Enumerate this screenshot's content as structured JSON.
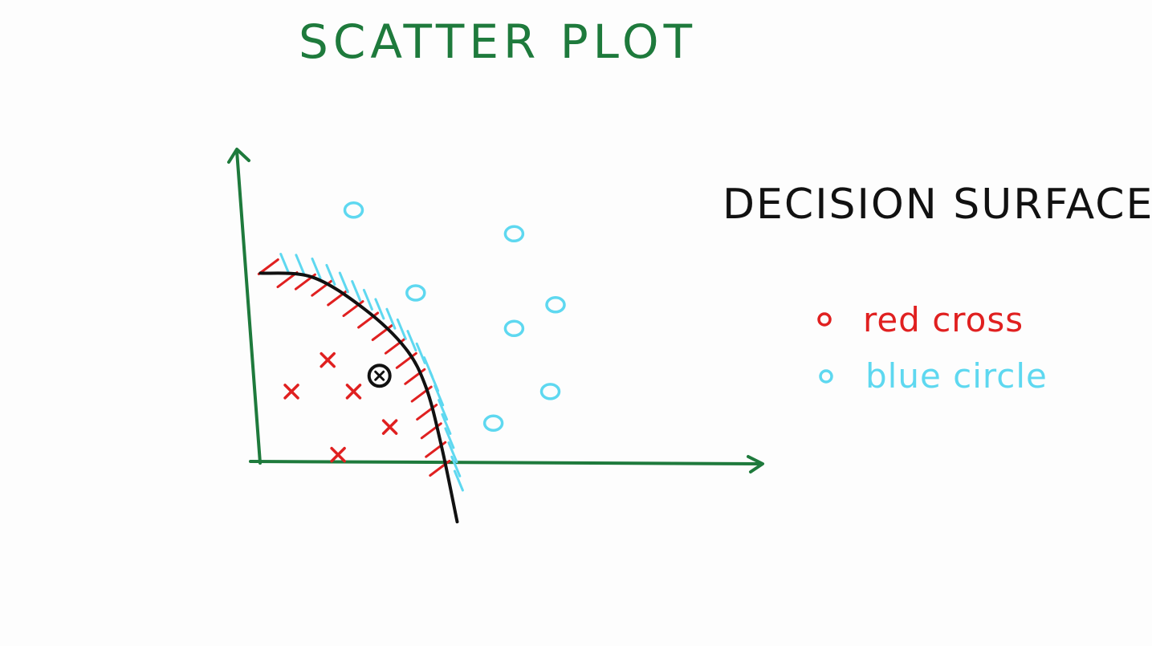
{
  "title": "SCATTER PLOT",
  "heading": "DECISION SURFACE",
  "legend": [
    {
      "label": "red cross",
      "color": "#e02020"
    },
    {
      "label": "blue circle",
      "color": "#5ed8f0"
    }
  ],
  "colors": {
    "title": "#1e7a3c",
    "axes": "#1e7a3c",
    "boundary": "#111111",
    "heading": "#111111",
    "red": "#e02020",
    "blue": "#5ed8f0"
  },
  "chart_data": {
    "type": "scatter",
    "series": [
      {
        "name": "red cross",
        "marker": "cross",
        "points": [
          [
            1.3,
            3.3
          ],
          [
            1.8,
            2.5
          ],
          [
            0.6,
            2.5
          ],
          [
            1.5,
            0.9
          ],
          [
            2.5,
            1.6
          ]
        ]
      },
      {
        "name": "blue circle",
        "marker": "circle",
        "points": [
          [
            1.8,
            7.1
          ],
          [
            4.9,
            6.5
          ],
          [
            3.0,
            5.0
          ],
          [
            5.7,
            4.7
          ],
          [
            4.9,
            4.1
          ],
          [
            5.6,
            2.5
          ],
          [
            4.5,
            1.7
          ]
        ]
      }
    ],
    "query_point": [
      2.3,
      2.9
    ],
    "boundary": [
      [
        0.0,
        5.5
      ],
      [
        1.0,
        5.4
      ],
      [
        2.0,
        4.6
      ],
      [
        2.8,
        3.6
      ],
      [
        3.2,
        2.6
      ],
      [
        3.5,
        1.1
      ],
      [
        3.8,
        -0.8
      ]
    ],
    "xlim": [
      -0.3,
      9.7
    ],
    "ylim": [
      -1,
      8.6
    ]
  }
}
